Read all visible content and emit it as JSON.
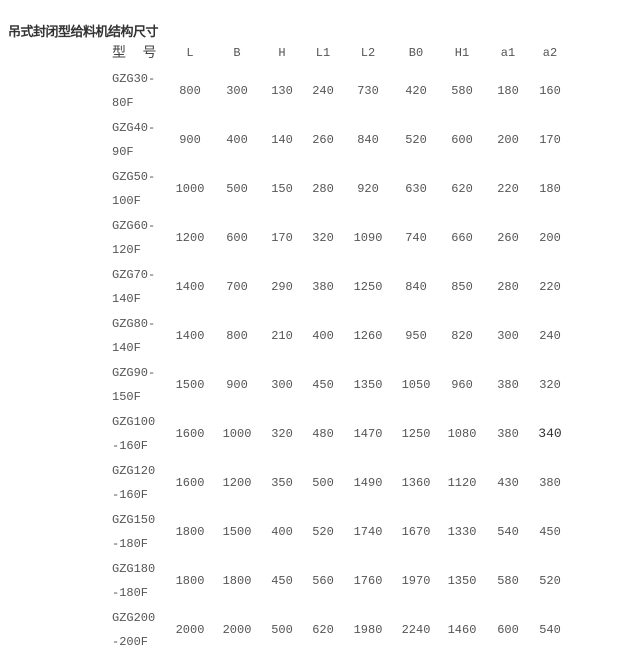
{
  "title": "吊式封闭型给料机结构尺寸",
  "columns": [
    "型 号",
    "L",
    "B",
    "H",
    "L1",
    "L2",
    "B0",
    "H1",
    "a1",
    "a2"
  ],
  "rows": [
    {
      "model": "GZG30-\n80F",
      "values": [
        "800",
        "300",
        "130",
        "240",
        "730",
        "420",
        "580",
        "180",
        "160"
      ]
    },
    {
      "model": "GZG40-\n90F",
      "values": [
        "900",
        "400",
        "140",
        "260",
        "840",
        "520",
        "600",
        "200",
        "170"
      ]
    },
    {
      "model": "GZG50-\n100F",
      "values": [
        "1000",
        "500",
        "150",
        "280",
        "920",
        "630",
        "620",
        "220",
        "180"
      ]
    },
    {
      "model": "GZG60-\n120F",
      "values": [
        "1200",
        "600",
        "170",
        "320",
        "1090",
        "740",
        "660",
        "260",
        "200"
      ]
    },
    {
      "model": "GZG70-\n140F",
      "values": [
        "1400",
        "700",
        "290",
        "380",
        "1250",
        "840",
        "850",
        "280",
        "220"
      ]
    },
    {
      "model": "GZG80-\n140F",
      "values": [
        "1400",
        "800",
        "210",
        "400",
        "1260",
        "950",
        "820",
        "300",
        "240"
      ]
    },
    {
      "model": "GZG90-\n150F",
      "values": [
        "1500",
        "900",
        "300",
        "450",
        "1350",
        "1050",
        "960",
        "380",
        "320"
      ]
    },
    {
      "model": "GZG100\n-160F",
      "values": [
        "1600",
        "1000",
        "320",
        "480",
        "1470",
        "1250",
        "1080",
        "380",
        "340"
      ]
    },
    {
      "model": "GZG120\n-160F",
      "values": [
        "1600",
        "1200",
        "350",
        "500",
        "1490",
        "1360",
        "1120",
        "430",
        "380"
      ]
    },
    {
      "model": "GZG150\n-180F",
      "values": [
        "1800",
        "1500",
        "400",
        "520",
        "1740",
        "1670",
        "1330",
        "540",
        "450"
      ]
    },
    {
      "model": "GZG180\n-180F",
      "values": [
        "1800",
        "1800",
        "450",
        "560",
        "1760",
        "1970",
        "1350",
        "580",
        "520"
      ]
    },
    {
      "model": "GZG200\n-200F",
      "values": [
        "2000",
        "2000",
        "500",
        "620",
        "1980",
        "2240",
        "1460",
        "600",
        "540"
      ]
    }
  ]
}
